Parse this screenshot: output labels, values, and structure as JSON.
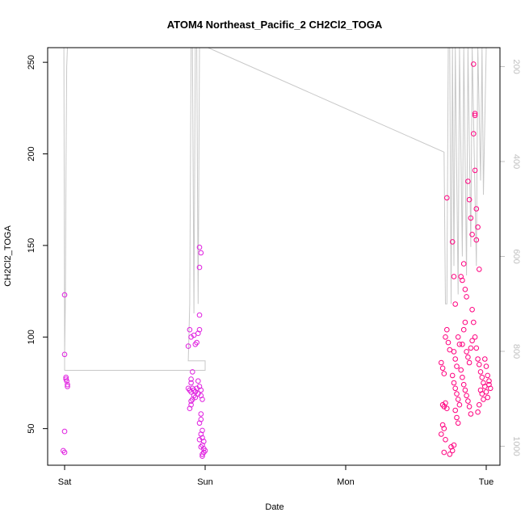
{
  "chart_data": {
    "type": "scatter",
    "title": "ATOM4 Northeast_Pacific_2 CH2Cl2_TOGA",
    "xlabel": "Date",
    "ylabel": "CH2Cl2_TOGA",
    "x_ticks": [
      "Sat",
      "Sun",
      "Mon",
      "Tue"
    ],
    "y_ticks": [
      50,
      100,
      150,
      200,
      250
    ],
    "y_range": [
      30,
      258
    ],
    "x_range_days": [
      -0.03,
      3.07
    ],
    "secondary_axis": {
      "ticks": [
        200,
        400,
        600,
        800,
        1000
      ],
      "range_inverted": [
        160,
        1040
      ],
      "color": "#c0c0c0"
    },
    "grid": false,
    "legend": "none",
    "point_color_sun": "#e020e0",
    "point_color_tue": "#ff007f",
    "line_color": "#c8c8c8",
    "series": [
      {
        "values": [
          [
            0.0,
            123
          ],
          [
            0.0,
            90.5
          ],
          [
            0.01,
            78
          ],
          [
            0.01,
            77
          ],
          [
            0.015,
            76
          ],
          [
            0.02,
            74
          ],
          [
            0.02,
            73
          ],
          [
            0.0,
            48.5
          ],
          [
            -0.01,
            38
          ],
          [
            0.0,
            37
          ],
          [
            0.89,
            104
          ],
          [
            0.9,
            100
          ],
          [
            0.92,
            101
          ],
          [
            0.88,
            95
          ],
          [
            0.93,
            96
          ],
          [
            0.95,
            102
          ],
          [
            0.96,
            104
          ],
          [
            0.94,
            97
          ],
          [
            0.91,
            81
          ],
          [
            0.9,
            77
          ],
          [
            0.9,
            75
          ],
          [
            0.88,
            72
          ],
          [
            0.89,
            71
          ],
          [
            0.9,
            70
          ],
          [
            0.91,
            72
          ],
          [
            0.92,
            71
          ],
          [
            0.93,
            70
          ],
          [
            0.94,
            72
          ],
          [
            0.95,
            69
          ],
          [
            0.92,
            68
          ],
          [
            0.93,
            67
          ],
          [
            0.91,
            66
          ],
          [
            0.9,
            65
          ],
          [
            0.9,
            63
          ],
          [
            0.89,
            61
          ],
          [
            0.96,
            73
          ],
          [
            0.97,
            71
          ],
          [
            0.95,
            76
          ],
          [
            0.97,
            68
          ],
          [
            0.98,
            66
          ],
          [
            0.96,
            149
          ],
          [
            0.97,
            146
          ],
          [
            0.96,
            138
          ],
          [
            0.96,
            112
          ],
          [
            0.97,
            58
          ],
          [
            0.97,
            55
          ],
          [
            0.96,
            53
          ],
          [
            0.98,
            49
          ],
          [
            0.97,
            47
          ],
          [
            0.98,
            45
          ],
          [
            0.96,
            44
          ],
          [
            0.99,
            43
          ],
          [
            0.98,
            41
          ],
          [
            0.97,
            40
          ],
          [
            0.99,
            39
          ],
          [
            1.0,
            38
          ],
          [
            0.99,
            37
          ],
          [
            0.98,
            36
          ],
          [
            0.98,
            35
          ]
        ]
      },
      {
        "values": [
          [
            2.72,
            176
          ],
          [
            2.68,
            86
          ],
          [
            2.69,
            83
          ],
          [
            2.7,
            80
          ],
          [
            2.71,
            100
          ],
          [
            2.72,
            104
          ],
          [
            2.73,
            97
          ],
          [
            2.74,
            93
          ],
          [
            2.69,
            63
          ],
          [
            2.7,
            62
          ],
          [
            2.71,
            64
          ],
          [
            2.72,
            61
          ],
          [
            2.69,
            52
          ],
          [
            2.7,
            50
          ],
          [
            2.68,
            47
          ],
          [
            2.71,
            44
          ],
          [
            2.7,
            37
          ],
          [
            2.75,
            40
          ],
          [
            2.76,
            38
          ],
          [
            2.77,
            41
          ],
          [
            2.74,
            36
          ],
          [
            2.76,
            152
          ],
          [
            2.77,
            133
          ],
          [
            2.78,
            118
          ],
          [
            2.77,
            92
          ],
          [
            2.78,
            88
          ],
          [
            2.79,
            84
          ],
          [
            2.8,
            100
          ],
          [
            2.81,
            96
          ],
          [
            2.76,
            79
          ],
          [
            2.77,
            75
          ],
          [
            2.78,
            72
          ],
          [
            2.79,
            69
          ],
          [
            2.8,
            66
          ],
          [
            2.81,
            63
          ],
          [
            2.79,
            56
          ],
          [
            2.8,
            53
          ],
          [
            2.78,
            60
          ],
          [
            2.82,
            133
          ],
          [
            2.83,
            131
          ],
          [
            2.84,
            140
          ],
          [
            2.85,
            126
          ],
          [
            2.86,
            122
          ],
          [
            2.85,
            108
          ],
          [
            2.84,
            104
          ],
          [
            2.83,
            96
          ],
          [
            2.86,
            92
          ],
          [
            2.87,
            89
          ],
          [
            2.88,
            86
          ],
          [
            2.82,
            82
          ],
          [
            2.83,
            78
          ],
          [
            2.84,
            74
          ],
          [
            2.85,
            71
          ],
          [
            2.86,
            68
          ],
          [
            2.87,
            65
          ],
          [
            2.88,
            62
          ],
          [
            2.89,
            58
          ],
          [
            2.87,
            185
          ],
          [
            2.88,
            175
          ],
          [
            2.89,
            165
          ],
          [
            2.9,
            156
          ],
          [
            2.91,
            249
          ],
          [
            2.92,
            222
          ],
          [
            2.92,
            221
          ],
          [
            2.91,
            211
          ],
          [
            2.92,
            191
          ],
          [
            2.93,
            170
          ],
          [
            2.94,
            160
          ],
          [
            2.93,
            153
          ],
          [
            2.95,
            137
          ],
          [
            2.9,
            115
          ],
          [
            2.91,
            108
          ],
          [
            2.92,
            100
          ],
          [
            2.93,
            94
          ],
          [
            2.94,
            88
          ],
          [
            2.95,
            85
          ],
          [
            2.96,
            81
          ],
          [
            2.97,
            78
          ],
          [
            2.98,
            75
          ],
          [
            2.99,
            73
          ],
          [
            2.96,
            71
          ],
          [
            2.97,
            69
          ],
          [
            2.98,
            66
          ],
          [
            2.95,
            63
          ],
          [
            2.94,
            59
          ],
          [
            2.99,
            88
          ],
          [
            3.0,
            84
          ],
          [
            3.01,
            79
          ],
          [
            3.02,
            76
          ],
          [
            3.03,
            72
          ],
          [
            3.0,
            70
          ],
          [
            3.01,
            67
          ],
          [
            3.02,
            74
          ],
          [
            2.9,
            98
          ],
          [
            2.89,
            94
          ]
        ]
      }
    ],
    "altitude_track": [
      [
        0.0,
        810
      ],
      [
        0.005,
        700
      ],
      [
        0.01,
        420
      ],
      [
        0.015,
        200
      ],
      [
        0.02,
        160
      ],
      [
        0.0,
        160
      ],
      [
        -0.005,
        160
      ],
      [
        0.0,
        810
      ],
      [
        0.0,
        810
      ],
      [
        0.0,
        840
      ],
      [
        0.95,
        840
      ],
      [
        1.0,
        840
      ],
      [
        1.0,
        820
      ],
      [
        0.88,
        820
      ],
      [
        0.89,
        700
      ],
      [
        0.9,
        160
      ],
      [
        0.91,
        160
      ],
      [
        0.92,
        720
      ],
      [
        0.93,
        160
      ],
      [
        0.94,
        160
      ],
      [
        0.95,
        700
      ],
      [
        0.96,
        160
      ],
      [
        0.97,
        160
      ],
      [
        1.02,
        160
      ],
      [
        2.7,
        380
      ],
      [
        2.7,
        380
      ],
      [
        2.71,
        700
      ],
      [
        2.72,
        700
      ],
      [
        2.73,
        160
      ],
      [
        2.74,
        160
      ],
      [
        2.75,
        700
      ],
      [
        2.76,
        160
      ],
      [
        2.77,
        620
      ],
      [
        2.78,
        160
      ],
      [
        2.8,
        680
      ],
      [
        2.81,
        160
      ],
      [
        2.83,
        600
      ],
      [
        2.84,
        160
      ],
      [
        2.86,
        640
      ],
      [
        2.87,
        160
      ],
      [
        2.89,
        580
      ],
      [
        2.9,
        160
      ],
      [
        2.93,
        620
      ],
      [
        2.94,
        160
      ],
      [
        2.96,
        440
      ],
      [
        2.97,
        160
      ],
      [
        2.98,
        470
      ],
      [
        3.0,
        160
      ]
    ]
  }
}
